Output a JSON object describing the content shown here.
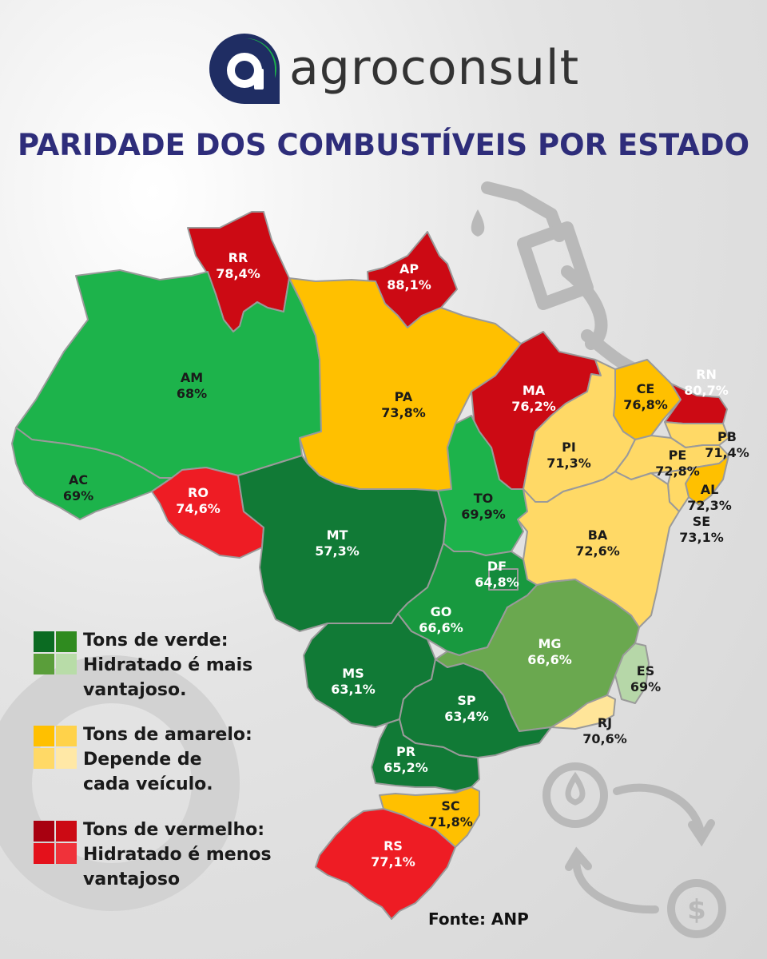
{
  "brand": {
    "name": "agroconsult"
  },
  "title": "PARIDADE DOS COMBUSTÍVEIS POR ESTADO",
  "map_data": {
    "states": [
      {
        "code": "RR",
        "value": "78,4%",
        "fill": "#cc0a14"
      },
      {
        "code": "AP",
        "value": "88,1%",
        "fill": "#cc0a14"
      },
      {
        "code": "AM",
        "value": "68%",
        "fill": "#1db34b"
      },
      {
        "code": "PA",
        "value": "73,8%",
        "fill": "#ffc000"
      },
      {
        "code": "MA",
        "value": "76,2%",
        "fill": "#cc0a14"
      },
      {
        "code": "CE",
        "value": "76,8%",
        "fill": "#ffc000"
      },
      {
        "code": "RN",
        "value": "80,7%",
        "fill": "#cc0a14"
      },
      {
        "code": "PB",
        "value": "71,4%",
        "fill": "#ffd966"
      },
      {
        "code": "PI",
        "value": "71,3%",
        "fill": "#ffd966"
      },
      {
        "code": "PE",
        "value": "72,8%",
        "fill": "#ffd966"
      },
      {
        "code": "AL",
        "value": "72,3%",
        "fill": "#ffc000"
      },
      {
        "code": "SE",
        "value": "73,1%",
        "fill": "#ffd966"
      },
      {
        "code": "AC",
        "value": "69%",
        "fill": "#1db34b"
      },
      {
        "code": "RO",
        "value": "74,6%",
        "fill": "#ee1c24"
      },
      {
        "code": "TO",
        "value": "69,9%",
        "fill": "#1db34b"
      },
      {
        "code": "MT",
        "value": "57,3%",
        "fill": "#117a36"
      },
      {
        "code": "BA",
        "value": "72,6%",
        "fill": "#ffd966"
      },
      {
        "code": "DF",
        "value": "64,8%",
        "fill": "#148a3c"
      },
      {
        "code": "GO",
        "value": "66,6%",
        "fill": "#18993f"
      },
      {
        "code": "MG",
        "value": "66,6%",
        "fill": "#6aa84f"
      },
      {
        "code": "ES",
        "value": "69%",
        "fill": "#b6d7a8"
      },
      {
        "code": "MS",
        "value": "63,1%",
        "fill": "#117a36"
      },
      {
        "code": "SP",
        "value": "63,4%",
        "fill": "#117a36"
      },
      {
        "code": "RJ",
        "value": "70,6%",
        "fill": "#ffe599"
      },
      {
        "code": "PR",
        "value": "65,2%",
        "fill": "#117a36"
      },
      {
        "code": "SC",
        "value": "71,8%",
        "fill": "#ffc000"
      },
      {
        "code": "RS",
        "value": "77,1%",
        "fill": "#ee1c24"
      }
    ]
  },
  "legend": [
    {
      "line1": "Tons de verde:",
      "line2": "Hidratado é mais",
      "line3": "vantajoso.",
      "colors": [
        "#0b6b22",
        "#2f8b1f",
        "#5a9e3a",
        "#b8dca8"
      ]
    },
    {
      "line1": "Tons de amarelo:",
      "line2": "Depende de",
      "line3": "cada veículo.",
      "colors": [
        "#ffc000",
        "#ffd24a",
        "#ffd966",
        "#ffe8a6"
      ]
    },
    {
      "line1": "Tons de vermelho:",
      "line2": "Hidratado é menos",
      "line3": "vantajoso",
      "colors": [
        "#a80010",
        "#cc0a14",
        "#e4111b",
        "#f0323a"
      ]
    }
  ],
  "source": "Fonte: ANP",
  "colors": {
    "title": "#2e2d7a",
    "logo_dark": "#1f2d63",
    "logo_light": "#1db34b"
  },
  "icons": [
    "fuel-pump-icon",
    "fuel-drop-icon",
    "dollar-coin-icon",
    "cycle-arrows-icon"
  ]
}
